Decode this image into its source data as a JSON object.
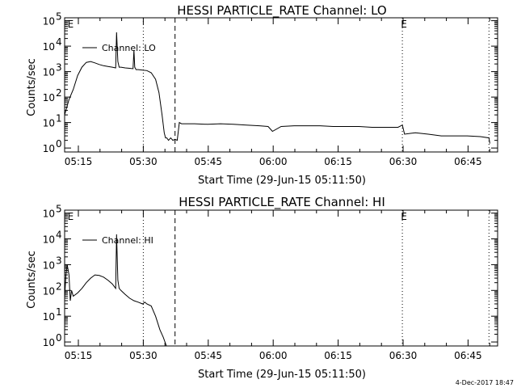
{
  "footer": {
    "date_stamp": "4-Dec-2017 18:47"
  },
  "colors": {
    "line": "#000000",
    "background": "#ffffff"
  },
  "chart_data": [
    {
      "type": "line",
      "title": "HESSI PARTICLE_RATE Channel: LO",
      "xlabel": "Start Time (29-Jun-15 05:11:50)",
      "ylabel": "Counts/sec",
      "yscale": "log",
      "ylim": [
        0.7,
        130000
      ],
      "xlim_minutes": [
        0,
        100
      ],
      "xticks": [
        {
          "minute": 3.17,
          "label": "05:15"
        },
        {
          "minute": 18.17,
          "label": "05:30"
        },
        {
          "minute": 33.17,
          "label": "05:45"
        },
        {
          "minute": 48.17,
          "label": "06:00"
        },
        {
          "minute": 63.17,
          "label": "06:15"
        },
        {
          "minute": 78.17,
          "label": "06:30"
        },
        {
          "minute": 93.17,
          "label": "06:45"
        }
      ],
      "yticks": [
        {
          "value": 1,
          "base": "10",
          "exp": "0"
        },
        {
          "value": 10,
          "base": "10",
          "exp": "1"
        },
        {
          "value": 100,
          "base": "10",
          "exp": "2"
        },
        {
          "value": 1000,
          "base": "10",
          "exp": "3"
        },
        {
          "value": 10000,
          "base": "10",
          "exp": "4"
        },
        {
          "value": 100000,
          "base": "10",
          "exp": "5"
        }
      ],
      "grid": false,
      "legend": {
        "position": "top-left",
        "entries": [
          "Channel: LO"
        ]
      },
      "vlines": [
        {
          "minute": 18.17,
          "style": "dotted"
        },
        {
          "minute": 25.5,
          "style": "dashed"
        },
        {
          "minute": 78.0,
          "style": "dotted"
        },
        {
          "minute": 98.0,
          "style": "dotted"
        }
      ],
      "markers": [
        {
          "minute": 1.0,
          "label": "E"
        },
        {
          "minute": 78.0,
          "label": "E"
        }
      ],
      "series": [
        {
          "name": "Channel: LO",
          "x": [
            0,
            0.5,
            1,
            2,
            3,
            4,
            5,
            6,
            7,
            8,
            9,
            10,
            11,
            11.8,
            12,
            12.3,
            12.6,
            13,
            14,
            15,
            15.8,
            16,
            16.2,
            16.5,
            17,
            18,
            19,
            20,
            21,
            21.8,
            22.5,
            23,
            23.3,
            23.6,
            24,
            24.5,
            25,
            25.5,
            26,
            26.5,
            27,
            30,
            33,
            36,
            39,
            42,
            45,
            47,
            48,
            50,
            53,
            56,
            59,
            62,
            65,
            68,
            71,
            74,
            77,
            78,
            78.5,
            81,
            84,
            87,
            90,
            93,
            96,
            98,
            98.2
          ],
          "values": [
            20,
            40,
            80,
            200,
            700,
            1500,
            2300,
            2500,
            2200,
            1900,
            1700,
            1600,
            1500,
            1400,
            35000,
            2500,
            1500,
            1500,
            1400,
            1350,
            1300,
            7000,
            1500,
            1200,
            1200,
            1150,
            1100,
            900,
            500,
            150,
            20,
            4,
            2.5,
            2.5,
            2,
            2.5,
            2,
            2.2,
            2,
            10,
            9,
            9,
            8.5,
            9,
            8.5,
            8,
            7.5,
            7,
            4.5,
            7,
            7.5,
            7.5,
            7.5,
            7,
            7,
            7,
            6.5,
            6.5,
            6.5,
            8,
            3.5,
            4,
            3.5,
            3,
            3,
            3,
            2.8,
            2.5,
            1.5
          ]
        }
      ]
    },
    {
      "type": "line",
      "title": "HESSI PARTICLE_RATE Channel: HI",
      "xlabel": "Start Time (29-Jun-15 05:11:50)",
      "ylabel": "Counts/sec",
      "yscale": "log",
      "ylim": [
        0.7,
        130000
      ],
      "xlim_minutes": [
        0,
        100
      ],
      "xticks": [
        {
          "minute": 3.17,
          "label": "05:15"
        },
        {
          "minute": 18.17,
          "label": "05:30"
        },
        {
          "minute": 33.17,
          "label": "05:45"
        },
        {
          "minute": 48.17,
          "label": "06:00"
        },
        {
          "minute": 63.17,
          "label": "06:15"
        },
        {
          "minute": 78.17,
          "label": "06:30"
        },
        {
          "minute": 93.17,
          "label": "06:45"
        }
      ],
      "yticks": [
        {
          "value": 1,
          "base": "10",
          "exp": "0"
        },
        {
          "value": 10,
          "base": "10",
          "exp": "1"
        },
        {
          "value": 100,
          "base": "10",
          "exp": "2"
        },
        {
          "value": 1000,
          "base": "10",
          "exp": "3"
        },
        {
          "value": 10000,
          "base": "10",
          "exp": "4"
        },
        {
          "value": 100000,
          "base": "10",
          "exp": "5"
        }
      ],
      "grid": false,
      "legend": {
        "position": "top-left",
        "entries": [
          "Channel: HI"
        ]
      },
      "vlines": [
        {
          "minute": 18.17,
          "style": "dotted"
        },
        {
          "minute": 25.5,
          "style": "dashed"
        },
        {
          "minute": 78.0,
          "style": "dotted"
        },
        {
          "minute": 98.0,
          "style": "dotted"
        }
      ],
      "markers": [
        {
          "minute": 1.0,
          "label": "E"
        },
        {
          "minute": 78.0,
          "label": "E"
        }
      ],
      "series": [
        {
          "name": "Channel: HI",
          "x": [
            0,
            0.3,
            0.6,
            1.0,
            1.3,
            1.6,
            2,
            3,
            4,
            5,
            6,
            7,
            8,
            9,
            10,
            11,
            11.8,
            12,
            12.3,
            12.6,
            13,
            14,
            15,
            16,
            17,
            18,
            18.5,
            19,
            20,
            21,
            22,
            22.8,
            23.5
          ],
          "values": [
            50,
            400,
            1000,
            400,
            40,
            100,
            60,
            80,
            120,
            200,
            300,
            400,
            380,
            330,
            250,
            180,
            120,
            15000,
            250,
            120,
            100,
            70,
            50,
            40,
            35,
            30,
            35,
            30,
            25,
            10,
            3,
            1.5,
            0.7
          ]
        }
      ]
    }
  ]
}
